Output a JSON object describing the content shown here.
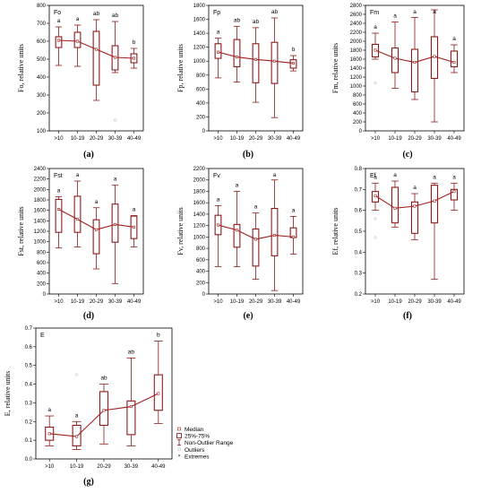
{
  "figure": {
    "xcategories": [
      ">10",
      "10-19",
      "20-29",
      "30-39",
      "40-49"
    ],
    "colors": {
      "box": "#8b1a1a",
      "line": "#a01e1e",
      "outlier": "#cccccc",
      "axis": "#000000",
      "grid": "#d8d8d8"
    }
  },
  "chart_data": [
    {
      "type": "box",
      "panel_label": "(a)",
      "title": "Fo",
      "ylabel": "Fo, relative units",
      "ylim": [
        100,
        800
      ],
      "yticks": [
        100,
        200,
        300,
        400,
        500,
        600,
        700,
        800
      ],
      "categories": [
        ">10",
        "10-19",
        "20-29",
        "30-39",
        "40-49"
      ],
      "medians": [
        605,
        600,
        555,
        510,
        505
      ],
      "q1": [
        565,
        565,
        355,
        440,
        480
      ],
      "q3": [
        625,
        650,
        655,
        575,
        530
      ],
      "whisker_low": [
        465,
        460,
        270,
        425,
        450
      ],
      "whisker_high": [
        680,
        690,
        720,
        710,
        560
      ],
      "outliers": [
        [],
        [],
        [],
        [
          160
        ],
        []
      ],
      "significance": [
        "a",
        "a",
        "ab",
        "ab",
        "b"
      ]
    },
    {
      "type": "box",
      "panel_label": "(b)",
      "title": "Fp",
      "ylabel": "Fp, relative units",
      "ylim": [
        0,
        1800
      ],
      "yticks": [
        0,
        200,
        400,
        600,
        800,
        1000,
        1200,
        1400,
        1600,
        1800
      ],
      "categories": [
        ">10",
        "10-19",
        "20-29",
        "30-39",
        "40-49"
      ],
      "medians": [
        1130,
        1060,
        1025,
        1000,
        970
      ],
      "q1": [
        1040,
        920,
        690,
        680,
        900
      ],
      "q3": [
        1250,
        1310,
        1250,
        1270,
        1020
      ],
      "whisker_low": [
        760,
        700,
        410,
        190,
        860
      ],
      "whisker_high": [
        1330,
        1500,
        1480,
        1620,
        1080
      ],
      "outliers": [
        [],
        [],
        [],
        [],
        []
      ],
      "significance": [
        "a",
        "ab",
        "ab",
        "ab",
        "b"
      ]
    },
    {
      "type": "box",
      "panel_label": "(c)",
      "title": "Fm",
      "ylabel": "Fm, relative units",
      "ylim": [
        0,
        2800
      ],
      "yticks": [
        0,
        200,
        400,
        600,
        800,
        1000,
        1200,
        1400,
        1600,
        1800,
        2000,
        2200,
        2400,
        2600,
        2800
      ],
      "categories": [
        ">10",
        "10-19",
        "20-29",
        "30-39",
        "40-49"
      ],
      "medians": [
        1800,
        1620,
        1530,
        1660,
        1530
      ],
      "q1": [
        1650,
        1300,
        870,
        1170,
        1430
      ],
      "q3": [
        1930,
        1850,
        1820,
        2100,
        1780
      ],
      "whisker_low": [
        1600,
        950,
        700,
        200,
        1300
      ],
      "whisker_high": [
        2180,
        2430,
        2530,
        2700,
        1920
      ],
      "outliers": [
        [
          1070
        ],
        [],
        [],
        [],
        []
      ],
      "significance": [
        "a",
        "a",
        "a",
        "a",
        "a"
      ]
    },
    {
      "type": "box",
      "panel_label": "(d)",
      "title": "Fst",
      "ylabel": "Fst, relative units",
      "ylim": [
        0,
        2400
      ],
      "yticks": [
        0,
        200,
        400,
        600,
        800,
        1000,
        1200,
        1400,
        1600,
        1800,
        2000,
        2200,
        2400
      ],
      "categories": [
        ">10",
        "10-19",
        "20-29",
        "30-39",
        "40-49"
      ],
      "medians": [
        1620,
        1430,
        1230,
        1330,
        1280
      ],
      "q1": [
        1180,
        1180,
        770,
        990,
        1060
      ],
      "q3": [
        1810,
        1870,
        1420,
        1720,
        1490
      ],
      "whisker_low": [
        880,
        900,
        480,
        200,
        900
      ],
      "whisker_high": [
        1860,
        2160,
        1650,
        2080,
        1500
      ],
      "outliers": [
        [],
        [],
        [],
        [],
        []
      ],
      "significance": [
        "a",
        "a",
        "a",
        "a",
        "a"
      ]
    },
    {
      "type": "box",
      "panel_label": "(e)",
      "title": "Fv",
      "ylabel": "Fv, relative units",
      "ylim": [
        0,
        2200
      ],
      "yticks": [
        0,
        200,
        400,
        600,
        800,
        1000,
        1200,
        1400,
        1600,
        1800,
        2000,
        2200
      ],
      "categories": [
        ">10",
        "10-19",
        "20-29",
        "30-39",
        "40-49"
      ],
      "medians": [
        1210,
        1120,
        960,
        1030,
        1000
      ],
      "q1": [
        1040,
        820,
        490,
        670,
        990
      ],
      "q3": [
        1380,
        1220,
        1140,
        1500,
        1160
      ],
      "whisker_low": [
        480,
        480,
        260,
        60,
        700
      ],
      "whisker_high": [
        1550,
        1800,
        1420,
        2000,
        1360
      ],
      "outliers": [
        [],
        [],
        [],
        [],
        []
      ],
      "significance": [
        "a",
        "a",
        "a",
        "a",
        "a"
      ]
    },
    {
      "type": "box",
      "panel_label": "(f)",
      "title": "Ef",
      "ylabel": "Ef, relative units",
      "ylim": [
        0.2,
        0.8
      ],
      "yticks": [
        0.2,
        0.3,
        0.4,
        0.5,
        0.6,
        0.7,
        0.8
      ],
      "categories": [
        ">10",
        "10-19",
        "20-29",
        "30-39",
        "40-49"
      ],
      "medians": [
        0.67,
        0.61,
        0.62,
        0.645,
        0.69
      ],
      "q1": [
        0.64,
        0.54,
        0.49,
        0.54,
        0.65
      ],
      "q3": [
        0.69,
        0.71,
        0.64,
        0.72,
        0.7
      ],
      "whisker_low": [
        0.6,
        0.52,
        0.46,
        0.27,
        0.6
      ],
      "whisker_high": [
        0.73,
        0.74,
        0.68,
        0.73,
        0.73
      ],
      "outliers": [
        [
          0.56,
          0.47
        ],
        [],
        [],
        [],
        []
      ],
      "significance": [
        "a",
        "a",
        "a",
        "a",
        "a"
      ]
    },
    {
      "type": "box",
      "panel_label": "(g)",
      "title": "E",
      "ylabel": "E, relative units",
      "ylim": [
        0.0,
        0.7
      ],
      "yticks": [
        0.0,
        0.1,
        0.2,
        0.3,
        0.4,
        0.5,
        0.6,
        0.7
      ],
      "categories": [
        ">10",
        "10-19",
        "20-29",
        "30-39",
        "40-49"
      ],
      "medians": [
        0.135,
        0.12,
        0.26,
        0.28,
        0.35
      ],
      "q1": [
        0.1,
        0.07,
        0.18,
        0.13,
        0.26
      ],
      "q3": [
        0.17,
        0.18,
        0.36,
        0.31,
        0.45
      ],
      "whisker_low": [
        0.07,
        0.05,
        0.08,
        0.07,
        0.19
      ],
      "whisker_high": [
        0.23,
        0.2,
        0.4,
        0.54,
        0.63
      ],
      "outliers": [
        [],
        [
          0.45
        ],
        [],
        [],
        []
      ],
      "significance": [
        "a",
        "a",
        "ab",
        "ab",
        "b"
      ]
    }
  ],
  "legend": {
    "items": [
      {
        "label": "Median",
        "symbol": "median"
      },
      {
        "label": "25%-75%",
        "symbol": "box"
      },
      {
        "label": "Non-Outlier Range",
        "symbol": "whisker"
      },
      {
        "label": "Outliers",
        "symbol": "outlier"
      },
      {
        "label": "Extremes",
        "symbol": "extreme"
      }
    ]
  }
}
